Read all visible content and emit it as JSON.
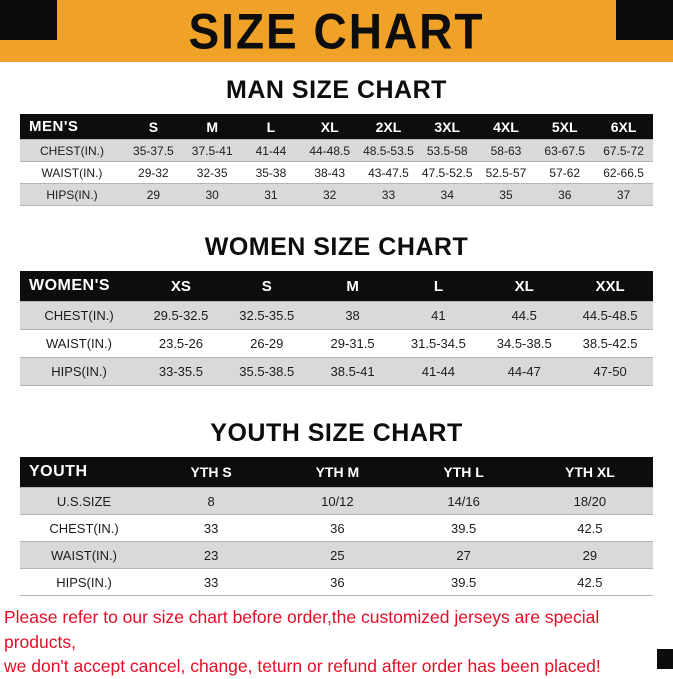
{
  "banner": {
    "title": "SIZE CHART",
    "background_color": "#F0A127",
    "corner_color": "#0C0C0C"
  },
  "sections": [
    {
      "heading": "MAN SIZE CHART",
      "table": {
        "header": [
          "MEN'S",
          "S",
          "M",
          "L",
          "XL",
          "2XL",
          "3XL",
          "4XL",
          "5XL",
          "6XL"
        ],
        "rows": [
          [
            "CHEST(IN.)",
            "35-37.5",
            "37.5-41",
            "41-44",
            "44-48.5",
            "48.5-53.5",
            "53.5-58",
            "58-63",
            "63-67.5",
            "67.5-72"
          ],
          [
            "WAIST(IN.)",
            "29-32",
            "32-35",
            "35-38",
            "38-43",
            "43-47.5",
            "47.5-52.5",
            "52.5-57",
            "57-62",
            "62-66.5"
          ],
          [
            "HIPS(IN.)",
            "29",
            "30",
            "31",
            "32",
            "33",
            "34",
            "35",
            "36",
            "37"
          ]
        ]
      }
    },
    {
      "heading": "WOMEN SIZE CHART",
      "table": {
        "header": [
          "WOMEN'S",
          "XS",
          "S",
          "M",
          "L",
          "XL",
          "XXL"
        ],
        "rows": [
          [
            "CHEST(IN.)",
            "29.5-32.5",
            "32.5-35.5",
            "38",
            "41",
            "44.5",
            "44.5-48.5"
          ],
          [
            "WAIST(IN.)",
            "23.5-26",
            "26-29",
            "29-31.5",
            "31.5-34.5",
            "34.5-38.5",
            "38.5-42.5"
          ],
          [
            "HIPS(IN.)",
            "33-35.5",
            "35.5-38.5",
            "38.5-41",
            "41-44",
            "44-47",
            "47-50"
          ]
        ]
      }
    },
    {
      "heading": "YOUTH SIZE CHART",
      "table": {
        "header": [
          "YOUTH",
          "YTH S",
          "YTH M",
          "YTH L",
          "YTH XL"
        ],
        "rows": [
          [
            "U.S.SIZE",
            "8",
            "10/12",
            "14/16",
            "18/20"
          ],
          [
            "CHEST(IN.)",
            "33",
            "36",
            "39.5",
            "42.5"
          ],
          [
            "WAIST(IN.)",
            "23",
            "25",
            "27",
            "29"
          ],
          [
            "HIPS(IN.)",
            "33",
            "36",
            "39.5",
            "42.5"
          ]
        ]
      }
    }
  ],
  "footer": {
    "line1": "Please refer to our size chart before order,the customized jerseys are special products,",
    "line2": "we don't accept cancel, change, teturn or refund after order has been placed!"
  },
  "colors": {
    "row_stripe": "#D9D9D9",
    "header_bar": "#0D0D0D",
    "footer_text": "#E50E26"
  }
}
